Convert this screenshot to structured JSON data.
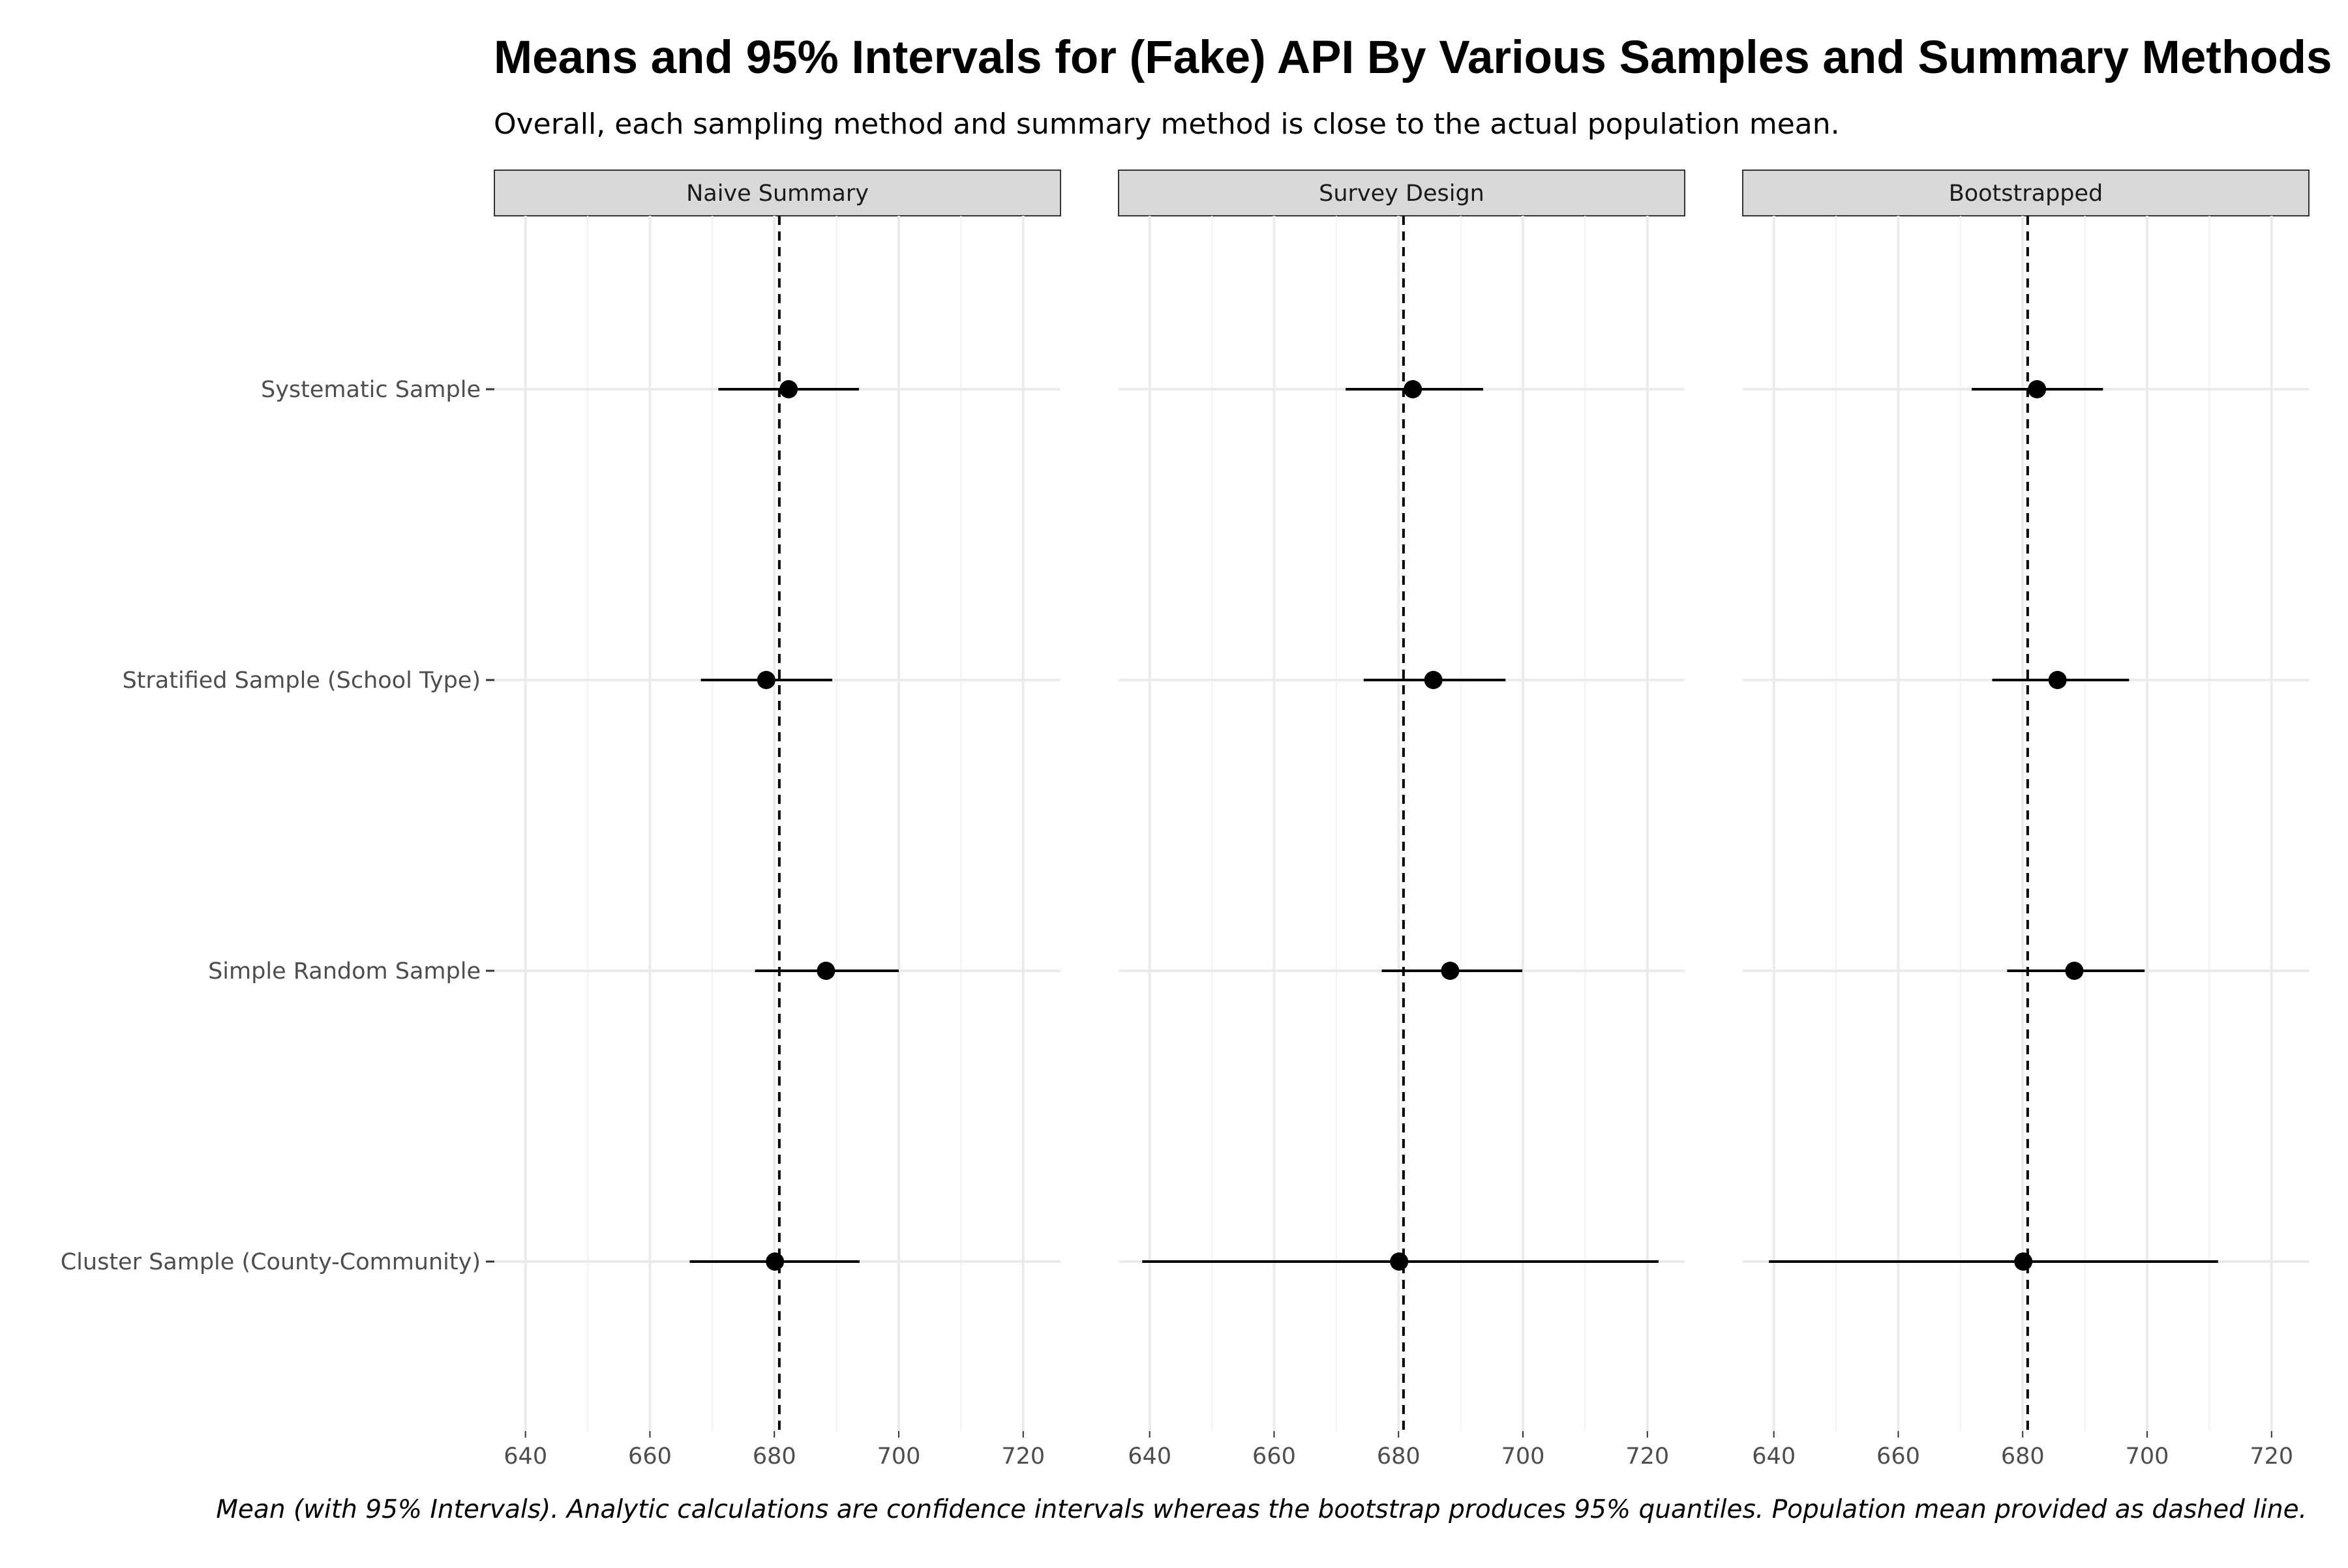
{
  "chart_data": {
    "type": "dot-interval",
    "title": "Means and 95% Intervals for (Fake) API By Various Samples and Summary Methods",
    "subtitle": "Overall, each sampling method and summary method is close to the actual population mean.",
    "caption": "Mean (with 95% Intervals). Analytic calculations are confidence intervals whereas the bootstrap produces 95% quantiles. Population mean provided as dashed line.",
    "xlim": [
      635,
      726
    ],
    "x_ticks": [
      640,
      660,
      680,
      700,
      720
    ],
    "x_minor_ticks": [
      650,
      670,
      690,
      710
    ],
    "reference_line": 680.8,
    "categories": [
      "Systematic Sample",
      "Stratified Sample (School Type)",
      "Simple Random Sample",
      "Cluster Sample (County-Community)"
    ],
    "panels": [
      {
        "name": "Naive Summary",
        "points": [
          {
            "category": "Systematic Sample",
            "mean": 682.3,
            "lower": 671.0,
            "upper": 693.6
          },
          {
            "category": "Stratified Sample (School Type)",
            "mean": 678.7,
            "lower": 668.2,
            "upper": 689.3
          },
          {
            "category": "Simple Random Sample",
            "mean": 688.3,
            "lower": 676.9,
            "upper": 700.0
          },
          {
            "category": "Cluster Sample (County-Community)",
            "mean": 680.1,
            "lower": 666.4,
            "upper": 693.7
          }
        ]
      },
      {
        "name": "Survey Design",
        "points": [
          {
            "category": "Systematic Sample",
            "mean": 682.3,
            "lower": 671.5,
            "upper": 693.6
          },
          {
            "category": "Stratified Sample (School Type)",
            "mean": 685.6,
            "lower": 674.4,
            "upper": 697.2
          },
          {
            "category": "Simple Random Sample",
            "mean": 688.3,
            "lower": 677.3,
            "upper": 699.9
          },
          {
            "category": "Cluster Sample (County-Community)",
            "mean": 680.1,
            "lower": 638.8,
            "upper": 721.8
          }
        ]
      },
      {
        "name": "Bootstrapped",
        "points": [
          {
            "category": "Systematic Sample",
            "mean": 682.3,
            "lower": 671.8,
            "upper": 692.9
          },
          {
            "category": "Stratified Sample (School Type)",
            "mean": 685.6,
            "lower": 675.1,
            "upper": 697.1
          },
          {
            "category": "Simple Random Sample",
            "mean": 688.3,
            "lower": 677.5,
            "upper": 699.6
          },
          {
            "category": "Cluster Sample (County-Community)",
            "mean": 680.1,
            "lower": 639.2,
            "upper": 711.4
          }
        ]
      }
    ],
    "grid": true,
    "legend": "none"
  }
}
